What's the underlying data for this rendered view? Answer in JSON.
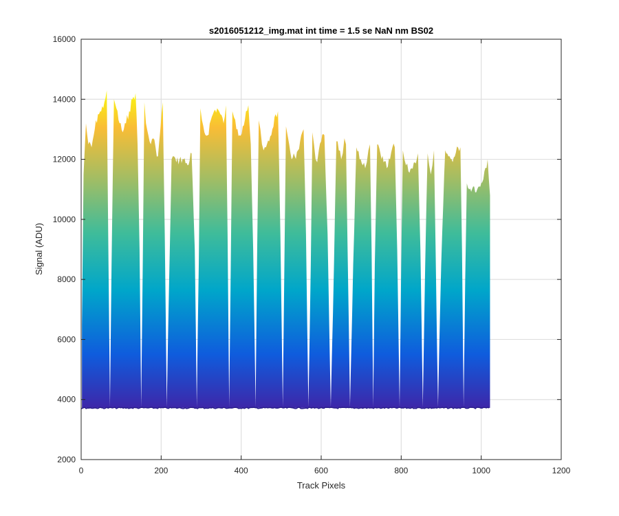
{
  "chart_data": {
    "type": "area",
    "title": "s2016051212_img.mat int time = 1.5 se  NaN nm BS02",
    "xlabel": "Track Pixels",
    "ylabel": "Signal (ADU)",
    "xlim": [
      0,
      1200
    ],
    "ylim": [
      2000,
      16000
    ],
    "xticks": [
      0,
      200,
      400,
      600,
      800,
      1000,
      1200
    ],
    "yticks": [
      2000,
      4000,
      6000,
      8000,
      10000,
      12000,
      14000,
      16000
    ],
    "grid": true,
    "baseline": 3720,
    "colormap": [
      "#3e26a8",
      "#0f5cdd",
      "#00a6ca",
      "#3fbc9a",
      "#a2bd64",
      "#f9bd35",
      "#f9fb0e"
    ],
    "series": [
      {
        "x": [
          2,
          6,
          12,
          18,
          26,
          34,
          42,
          50,
          58,
          64,
          68,
          72,
          76,
          82,
          88,
          96,
          104,
          112,
          120,
          128,
          136,
          141,
          146,
          150,
          154,
          158,
          162,
          168,
          174,
          180,
          186,
          192,
          198,
          204,
          209,
          214,
          220,
          226,
          232,
          238,
          246,
          256,
          266,
          276,
          284,
          289,
          294,
          298,
          302,
          308,
          316,
          324,
          332,
          340,
          348,
          356,
          362,
          366,
          370,
          374,
          378,
          382,
          388,
          396,
          404,
          412,
          418,
          424,
          430,
          436,
          440,
          444,
          448,
          452,
          456,
          462,
          470,
          478,
          486,
          492,
          498,
          504,
          508,
          512,
          516,
          520,
          526,
          534,
          542,
          550,
          556,
          562,
          568,
          574,
          578,
          582,
          586,
          590,
          594,
          600,
          608,
          616,
          624,
          632,
          638,
          644,
          650,
          654,
          658,
          662,
          666,
          672,
          680,
          688,
          696,
          704,
          710,
          714,
          718,
          722,
          726,
          730,
          734,
          740,
          748,
          756,
          764,
          772,
          778,
          784,
          790,
          796,
          800,
          804,
          808,
          812,
          818,
          826,
          834,
          842,
          848,
          854,
          860,
          866,
          870,
          874,
          878,
          882,
          886,
          892,
          900,
          910,
          918,
          926,
          934,
          942,
          948,
          952,
          956,
          960,
          964,
          970,
          980,
          990,
          1000,
          1008,
          1016,
          1022
        ],
        "y": [
          6500,
          11500,
          13200,
          12500,
          12400,
          13000,
          13500,
          13600,
          13900,
          14300,
          9000,
          3750,
          8500,
          14000,
          13700,
          13200,
          12900,
          13200,
          13600,
          14000,
          14200,
          12500,
          9000,
          3750,
          8500,
          13900,
          13200,
          12800,
          12500,
          12700,
          12400,
          12100,
          13000,
          13900,
          9500,
          3750,
          8000,
          12000,
          12100,
          11900,
          12000,
          12000,
          11800,
          12200,
          9000,
          3750,
          8500,
          13700,
          13300,
          12900,
          12800,
          13300,
          13600,
          13700,
          13500,
          13200,
          13800,
          9500,
          3750,
          8500,
          13600,
          13400,
          13000,
          12800,
          13100,
          13600,
          13800,
          12500,
          9000,
          3750,
          9000,
          13300,
          13000,
          12500,
          12300,
          12400,
          12600,
          13000,
          13500,
          13600,
          9500,
          3750,
          8500,
          13100,
          12800,
          12500,
          12000,
          12100,
          12300,
          12800,
          13000,
          9500,
          3750,
          8500,
          12900,
          12500,
          12000,
          11900,
          12300,
          12600,
          12800,
          9500,
          3750,
          8500,
          12600,
          12300,
          12000,
          12200,
          12700,
          12500,
          9000,
          3750,
          8500,
          12400,
          12000,
          11800,
          11700,
          11900,
          12300,
          12500,
          9000,
          3750,
          8500,
          12500,
          12200,
          11900,
          11700,
          12000,
          12400,
          12400,
          9000,
          3750,
          8500,
          12300,
          12000,
          11800,
          11600,
          11700,
          11900,
          12200,
          9000,
          3750,
          8500,
          12200,
          11800,
          11500,
          11800,
          12300,
          9000,
          3750,
          8500,
          12300,
          12100,
          12000,
          12100,
          12400,
          12400,
          9000,
          3750,
          8000,
          11200,
          11000,
          11100,
          11000,
          11200,
          11600,
          12000,
          10800
        ]
      }
    ]
  }
}
